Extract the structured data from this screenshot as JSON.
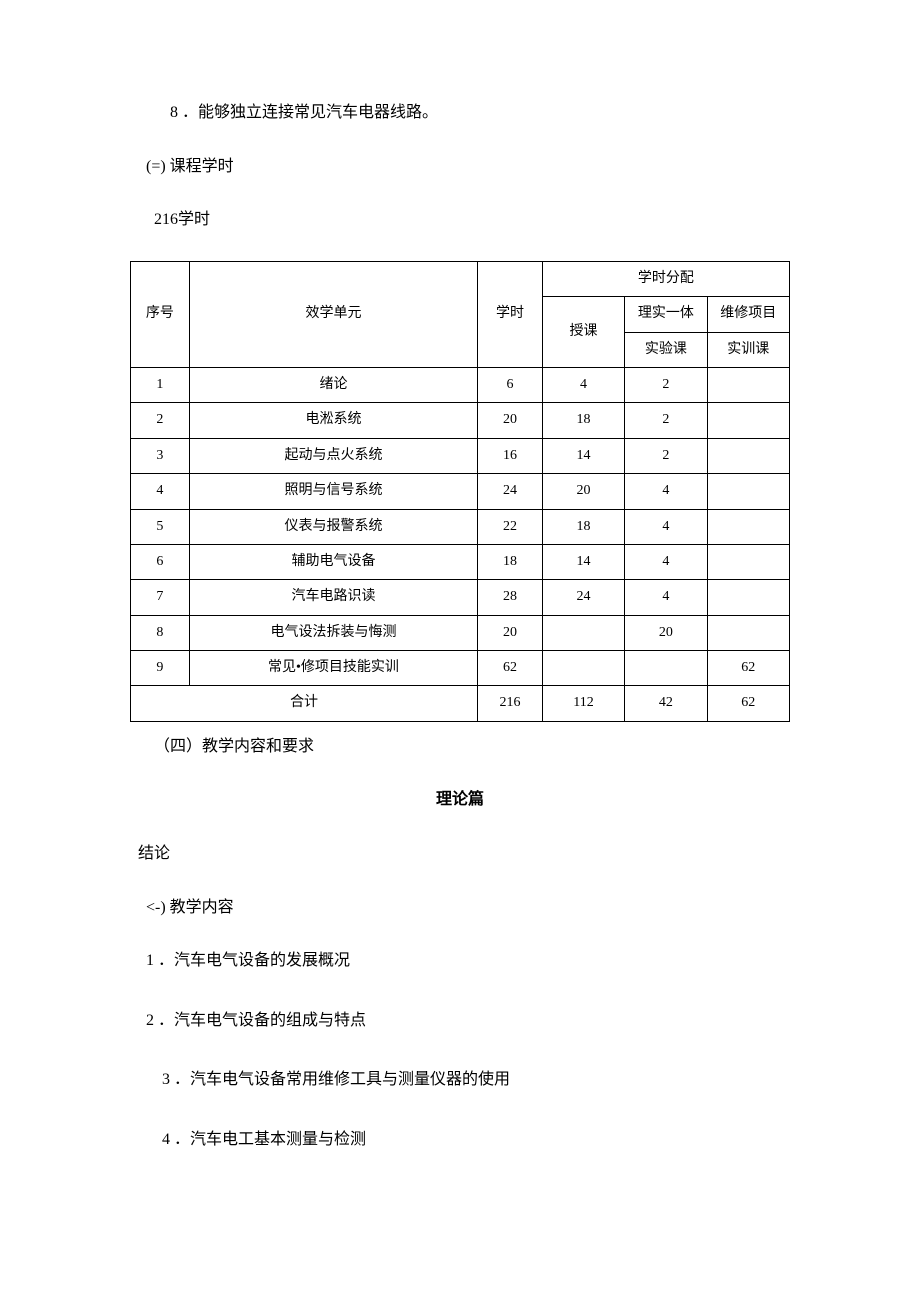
{
  "line1": "8 ．能够独立连接常见汽车电器线路。",
  "section_title_hours": "(=) 课程学时",
  "hours_text": "216学时",
  "table": {
    "headers": {
      "seq": "序号",
      "unit": "效学单元",
      "hours": "学时",
      "distribution": "学时分配",
      "lecture": "授课",
      "integrated": "理实一体",
      "lab": "实验课",
      "maintenance": "维修项目",
      "training": "实训课"
    },
    "rows": [
      {
        "seq": "1",
        "unit": "绪论",
        "hours": "6",
        "lecture": "4",
        "lab": "2",
        "training": ""
      },
      {
        "seq": "2",
        "unit": "电淞系统",
        "hours": "20",
        "lecture": "18",
        "lab": "2",
        "training": ""
      },
      {
        "seq": "3",
        "unit": "起动与点火系统",
        "hours": "16",
        "lecture": "14",
        "lab": "2",
        "training": ""
      },
      {
        "seq": "4",
        "unit": "照明与信号系统",
        "hours": "24",
        "lecture": "20",
        "lab": "4",
        "training": ""
      },
      {
        "seq": "5",
        "unit": "仪表与报警系统",
        "hours": "22",
        "lecture": "18",
        "lab": "4",
        "training": ""
      },
      {
        "seq": "6",
        "unit": "辅助电气设备",
        "hours": "18",
        "lecture": "14",
        "lab": "4",
        "training": ""
      },
      {
        "seq": "7",
        "unit": "汽车电路识读",
        "hours": "28",
        "lecture": "24",
        "lab": "4",
        "training": ""
      },
      {
        "seq": "8",
        "unit": "电气设法拆装与悔测",
        "hours": "20",
        "lecture": "",
        "lab": "20",
        "training": ""
      },
      {
        "seq": "9",
        "unit": "常见•修项目技能实训",
        "hours": "62",
        "lecture": "",
        "lab": "",
        "training": "62"
      }
    ],
    "total": {
      "label": "合计",
      "hours": "216",
      "lecture": "112",
      "lab": "42",
      "training": "62"
    }
  },
  "section4": "（四）教学内容和要求",
  "theory_heading": "理论篇",
  "conclusion": "结论",
  "teaching_content": "<-) 教学内容",
  "items": {
    "i1": "1 ．汽车电气设备的发展概况",
    "i2": "2 ．汽车电气设备的组成与特点",
    "i3": "3 ．汽车电气设备常用维修工具与测量仪器的使用",
    "i4": "4 ．汽车电工基本测量与检测"
  }
}
